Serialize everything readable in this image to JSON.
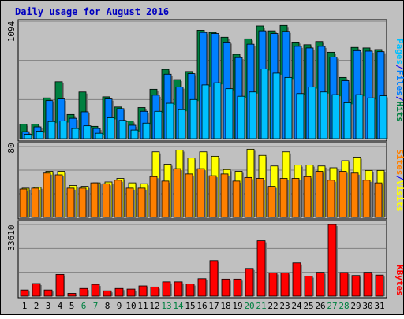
{
  "title": "Daily usage for August 2016",
  "colors": {
    "background": "#c0c0c0",
    "border": "#000000",
    "title": "#0000c0",
    "hits": "#008040",
    "files": "#0080ff",
    "pages": "#00c0ff",
    "visits": "#ffff00",
    "sites": "#ff8000",
    "kbytes": "#ff0000",
    "weekend_label": "#008040",
    "weekday_label": "#000000",
    "separator": "#0000ff"
  },
  "chart_data": [
    {
      "type": "bar",
      "title": "Daily usage for August 2016",
      "ylabel_parts": [
        "Pages",
        "/",
        "Files",
        "/",
        "Hits"
      ],
      "ymax_label": "1094",
      "ylim": [
        0,
        1094
      ],
      "grid": true,
      "categories": [
        "1",
        "2",
        "3",
        "4",
        "5",
        "6",
        "7",
        "8",
        "9",
        "10",
        "11",
        "12",
        "13",
        "14",
        "15",
        "16",
        "17",
        "18",
        "19",
        "20",
        "21",
        "22",
        "23",
        "24",
        "25",
        "26",
        "27",
        "28",
        "29",
        "30",
        "31"
      ],
      "series": [
        {
          "name": "Hits",
          "values": [
            135,
            135,
            380,
            530,
            225,
            435,
            115,
            390,
            295,
            165,
            290,
            460,
            645,
            550,
            625,
            1010,
            990,
            945,
            785,
            930,
            1050,
            1005,
            1055,
            900,
            875,
            905,
            805,
            570,
            850,
            845,
            830
          ]
        },
        {
          "name": "Files",
          "values": [
            65,
            110,
            355,
            370,
            190,
            250,
            95,
            370,
            280,
            125,
            255,
            405,
            600,
            480,
            605,
            990,
            980,
            900,
            755,
            880,
            1005,
            980,
            1000,
            860,
            845,
            860,
            760,
            540,
            820,
            815,
            810
          ]
        },
        {
          "name": "Pages",
          "values": [
            40,
            70,
            160,
            165,
            95,
            120,
            50,
            195,
            170,
            80,
            145,
            255,
            330,
            270,
            365,
            500,
            520,
            465,
            395,
            435,
            650,
            610,
            570,
            420,
            480,
            435,
            410,
            335,
            410,
            380,
            400
          ]
        }
      ]
    },
    {
      "type": "bar",
      "ylabel_parts": [
        "Sites",
        "/",
        "Visits"
      ],
      "ymax_label": "80",
      "ylim": [
        0,
        80
      ],
      "grid": true,
      "categories": [
        "1",
        "2",
        "3",
        "4",
        "5",
        "6",
        "7",
        "8",
        "9",
        "10",
        "11",
        "12",
        "13",
        "14",
        "15",
        "16",
        "17",
        "18",
        "19",
        "20",
        "21",
        "22",
        "23",
        "24",
        "25",
        "26",
        "27",
        "28",
        "29",
        "30",
        "31"
      ],
      "series": [
        {
          "name": "Visits",
          "values": [
            33,
            34,
            52,
            52,
            36,
            35,
            39,
            40,
            44,
            39,
            38,
            74,
            60,
            76,
            67,
            74,
            69,
            54,
            52,
            77,
            70,
            58,
            74,
            59,
            59,
            58,
            56,
            64,
            68,
            53,
            53
          ]
        },
        {
          "name": "Sites",
          "values": [
            32,
            33,
            50,
            48,
            33,
            33,
            39,
            38,
            42,
            33,
            33,
            46,
            41,
            55,
            49,
            55,
            47,
            49,
            41,
            45,
            44,
            35,
            44,
            44,
            46,
            52,
            42,
            52,
            50,
            42,
            39
          ]
        }
      ]
    },
    {
      "type": "bar",
      "ylabel_parts": [
        "KBytes"
      ],
      "ymax_label": "33610",
      "ylim": [
        0,
        33610
      ],
      "grid": true,
      "categories": [
        "1",
        "2",
        "3",
        "4",
        "5",
        "6",
        "7",
        "8",
        "9",
        "10",
        "11",
        "12",
        "13",
        "14",
        "15",
        "16",
        "17",
        "18",
        "19",
        "20",
        "21",
        "22",
        "23",
        "24",
        "25",
        "26",
        "27",
        "28",
        "29",
        "30",
        "31"
      ],
      "series": [
        {
          "name": "KBytes",
          "values": [
            2900,
            5900,
            2900,
            10200,
            1300,
            3600,
            5500,
            2500,
            3600,
            3300,
            4800,
            4300,
            6700,
            6700,
            5700,
            8200,
            16700,
            8000,
            8000,
            13000,
            26000,
            10900,
            10900,
            15600,
            9400,
            11200,
            33600,
            11100,
            9700,
            11200,
            9900
          ]
        }
      ]
    }
  ],
  "x_labels": [
    {
      "label": "1",
      "weekend": false
    },
    {
      "label": "2",
      "weekend": false
    },
    {
      "label": "3",
      "weekend": false
    },
    {
      "label": "4",
      "weekend": false
    },
    {
      "label": "5",
      "weekend": false
    },
    {
      "label": "6",
      "weekend": true
    },
    {
      "label": "7",
      "weekend": true
    },
    {
      "label": "8",
      "weekend": false
    },
    {
      "label": "9",
      "weekend": false
    },
    {
      "label": "10",
      "weekend": false
    },
    {
      "label": "11",
      "weekend": false
    },
    {
      "label": "12",
      "weekend": false
    },
    {
      "label": "13",
      "weekend": true
    },
    {
      "label": "14",
      "weekend": true
    },
    {
      "label": "15",
      "weekend": false
    },
    {
      "label": "16",
      "weekend": false
    },
    {
      "label": "17",
      "weekend": false
    },
    {
      "label": "18",
      "weekend": false
    },
    {
      "label": "19",
      "weekend": false
    },
    {
      "label": "20",
      "weekend": true
    },
    {
      "label": "21",
      "weekend": true
    },
    {
      "label": "22",
      "weekend": false
    },
    {
      "label": "23",
      "weekend": false
    },
    {
      "label": "24",
      "weekend": false
    },
    {
      "label": "25",
      "weekend": false
    },
    {
      "label": "26",
      "weekend": false
    },
    {
      "label": "27",
      "weekend": true
    },
    {
      "label": "28",
      "weekend": true
    },
    {
      "label": "29",
      "weekend": false
    },
    {
      "label": "30",
      "weekend": false
    },
    {
      "label": "31",
      "weekend": false
    }
  ]
}
